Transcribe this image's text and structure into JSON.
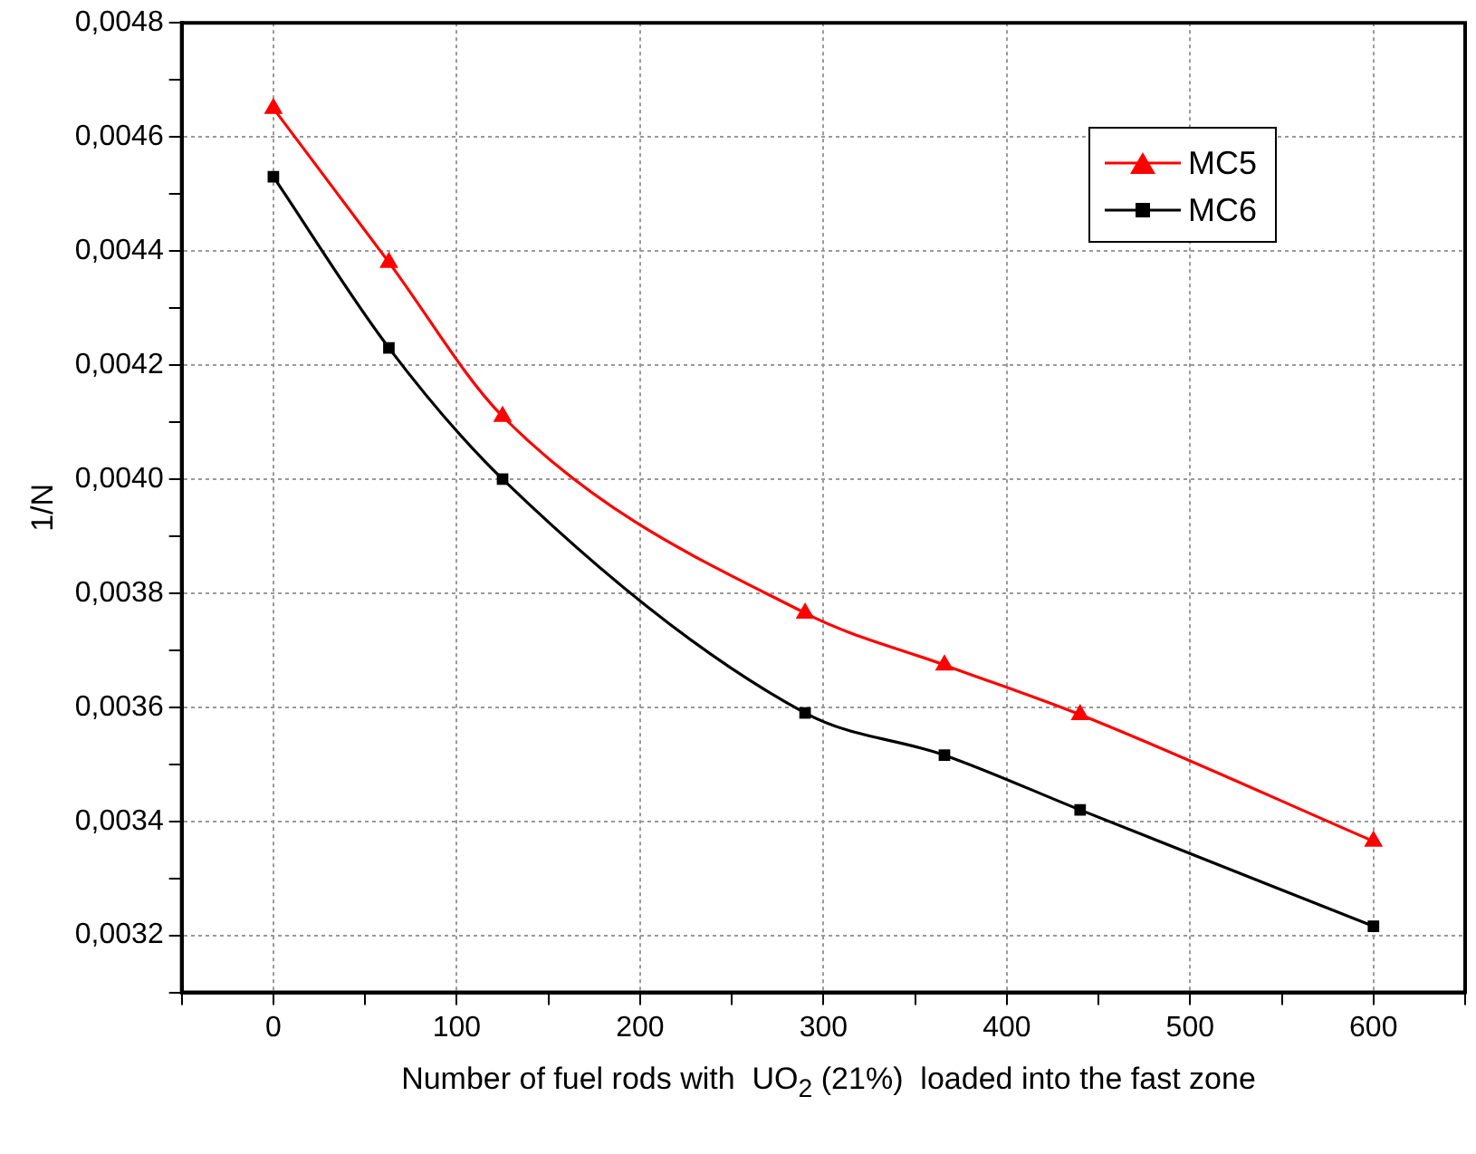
{
  "chart_data": {
    "type": "line",
    "xlabel": "Number of fuel rods with  UO$_{2}$ (21%)  loaded into the fast zone",
    "ylabel": "1/N",
    "x": [
      0,
      63,
      125,
      290,
      366,
      440,
      600
    ],
    "series": [
      {
        "name": "MC5",
        "color": "#ff0000",
        "marker": "triangle",
        "values": [
          0.00465,
          0.00438,
          0.00411,
          0.003765,
          0.003674,
          0.003587,
          0.003365
        ]
      },
      {
        "name": "MC6",
        "color": "#000000",
        "marker": "square",
        "values": [
          0.00453,
          0.00423,
          0.004,
          0.00359,
          0.003516,
          0.00342,
          0.003216
        ]
      }
    ],
    "xlim": [
      -50,
      650
    ],
    "xticks": [
      {
        "value": -50,
        "label": null
      },
      0,
      {
        "value": 50,
        "label": null
      },
      100,
      {
        "value": 150,
        "label": null
      },
      200,
      {
        "value": 250,
        "label": null
      },
      300,
      {
        "value": 350,
        "label": null
      },
      400,
      {
        "value": 450,
        "label": null
      },
      500,
      {
        "value": 550,
        "label": null
      },
      600,
      {
        "value": 650,
        "label": null
      }
    ],
    "ylim": [
      0.0031,
      0.0048
    ],
    "yticks": [
      {
        "value": 0.0031,
        "label": null
      },
      {
        "value": 0.0032,
        "label": "0,0032"
      },
      {
        "value": 0.0033,
        "label": null
      },
      {
        "value": 0.0034,
        "label": "0,0034"
      },
      {
        "value": 0.0035,
        "label": null
      },
      {
        "value": 0.0036,
        "label": "0,0036"
      },
      {
        "value": 0.0037,
        "label": null
      },
      {
        "value": 0.0038,
        "label": "0,0038"
      },
      {
        "value": 0.0039,
        "label": null
      },
      {
        "value": 0.004,
        "label": "0,0040"
      },
      {
        "value": 0.0041,
        "label": null
      },
      {
        "value": 0.0042,
        "label": "0,0042"
      },
      {
        "value": 0.0043,
        "label": null
      },
      {
        "value": 0.0044,
        "label": "0,0044"
      },
      {
        "value": 0.0045,
        "label": null
      },
      {
        "value": 0.0046,
        "label": "0,0046"
      },
      {
        "value": 0.0047,
        "label": null
      },
      {
        "value": 0.0048,
        "label": "0,0048"
      }
    ],
    "grid": true,
    "legend": "top right",
    "line_style": "solid"
  }
}
